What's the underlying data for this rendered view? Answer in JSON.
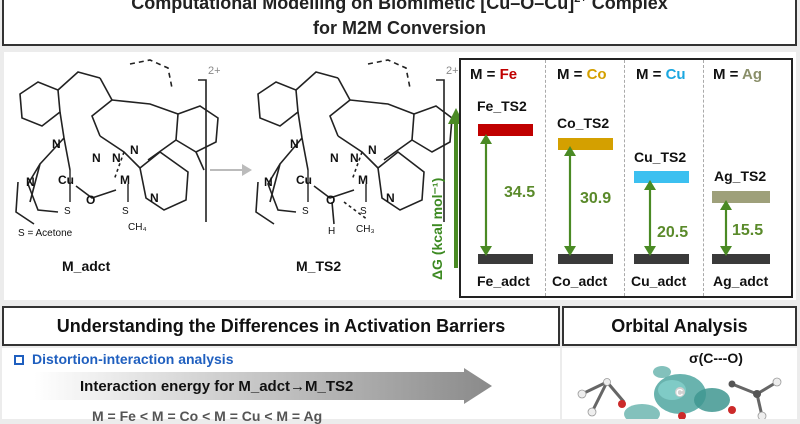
{
  "banner": {
    "line1_text": "Computational Modelling on Biomimetic [Cu–O–Cu]",
    "line1_sup": "2+",
    "line1_end": " Complex",
    "line2": "for M2M Conversion"
  },
  "molecules": {
    "left_label": "M_adct",
    "right_label": "M_TS2",
    "charge": "2+",
    "solvent_note": "S = Acetone",
    "atoms": {
      "cu": "Cu",
      "m": "M",
      "o": "O",
      "n": "N",
      "s": "S",
      "h": "H",
      "ch4": "CH₄",
      "ch3": "CH₃"
    }
  },
  "energy": {
    "axis_label": "ΔG (kcal mol⁻¹)",
    "columns": [
      {
        "metal_prefix": "M = ",
        "metal": "Fe",
        "color": "#c00000",
        "ts": "Fe_TS2",
        "adct": "Fe_adct",
        "barrier": 34.5,
        "level_color": "#c00000"
      },
      {
        "metal_prefix": "M = ",
        "metal": "Co",
        "color": "#d4a000",
        "ts": "Co_TS2",
        "adct": "Co_adct",
        "barrier": 30.9,
        "level_color": "#d4a000"
      },
      {
        "metal_prefix": "M = ",
        "metal": "Cu",
        "color": "#1aa7e0",
        "ts": "Cu_TS2",
        "adct": "Cu_adct",
        "barrier": 20.5,
        "level_color": "#3cc0f0"
      },
      {
        "metal_prefix": "M = ",
        "metal": "Ag",
        "color": "#8a8f6a",
        "ts": "Ag_TS2",
        "adct": "Ag_adct",
        "barrier": 15.5,
        "level_color": "#9ea07a"
      }
    ]
  },
  "sections": {
    "left_title": "Understanding the Differences in Activation Barriers",
    "right_title": "Orbital Analysis",
    "distortion_title": "Distortion-interaction analysis",
    "interaction_text": "Interaction energy for M_adct→M_TS2",
    "order_text": "M = Fe < M = Co < M = Cu < M = Ag",
    "sigma_label": "σ(C---O)",
    "orbital_atom": "C"
  }
}
